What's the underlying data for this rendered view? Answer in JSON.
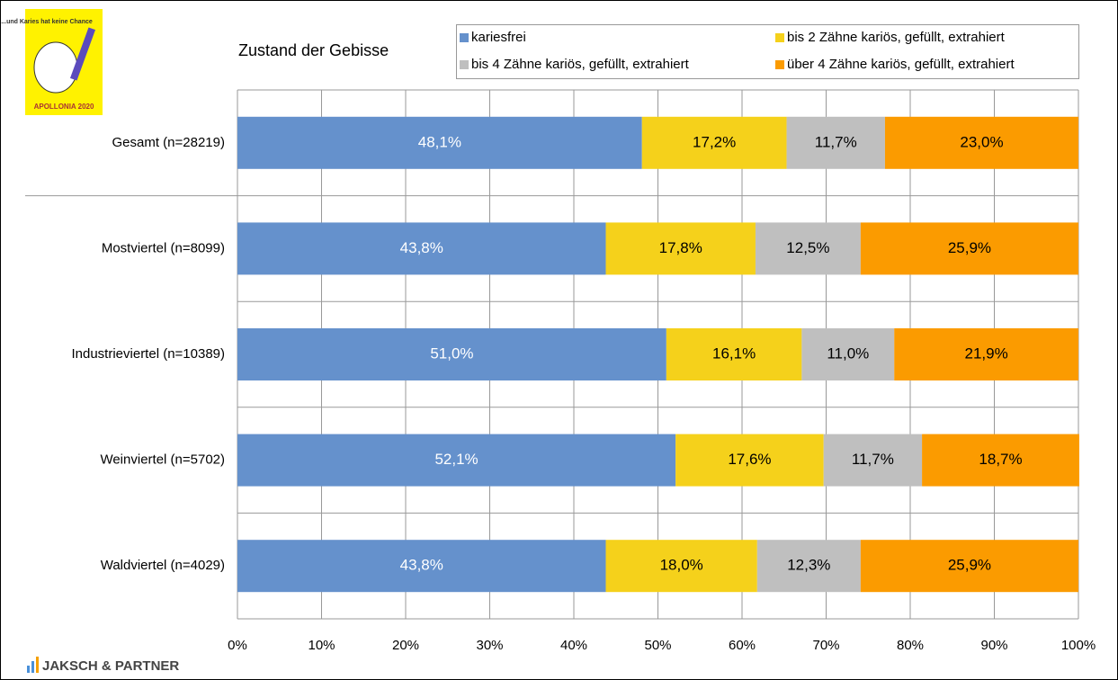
{
  "chart_data": {
    "type": "stacked_barh",
    "title": "Zustand der Gebisse",
    "logo": {
      "caption": "...und Karies hat keine Chance",
      "name": "APOLLONIA 2020"
    },
    "source": "JAKSCH & PARTNER",
    "categories": [
      "Gesamt (n=28219)",
      "Mostviertel (n=8099)",
      "Industrieviertel (n=10389)",
      "Weinviertel (n=5702)",
      "Waldviertel (n=4029)"
    ],
    "series": [
      {
        "name": "kariesfrei",
        "color": "#6591cc",
        "values": [
          48.1,
          43.8,
          51.0,
          52.1,
          43.8
        ],
        "value_labels": [
          "48,1%",
          "43,8%",
          "51,0%",
          "52,1%",
          "43,8%"
        ]
      },
      {
        "name": "bis 2 Zähne kariös, gefüllt, extrahiert",
        "color": "#f5d11b",
        "values": [
          17.2,
          17.8,
          16.1,
          17.6,
          18.0
        ],
        "value_labels": [
          "17,2%",
          "17,8%",
          "16,1%",
          "17,6%",
          "18,0%"
        ]
      },
      {
        "name": "bis 4 Zähne kariös, gefüllt, extrahiert",
        "color": "#bfbfbf",
        "values": [
          11.7,
          12.5,
          11.0,
          11.7,
          12.3
        ],
        "value_labels": [
          "11,7%",
          "12,5%",
          "11,0%",
          "11,7%",
          "12,3%"
        ]
      },
      {
        "name": "über 4 Zähne kariös, gefüllt, extrahiert",
        "color": "#fb9b00",
        "values": [
          23.0,
          25.9,
          21.9,
          18.7,
          25.9
        ],
        "value_labels": [
          "23,0%",
          "25,9%",
          "21,9%",
          "18,7%",
          "25,9%"
        ]
      }
    ],
    "xlim": [
      0,
      100
    ],
    "xticks": [
      {
        "value": 0,
        "label": "0%"
      },
      {
        "value": 10,
        "label": "10%"
      },
      {
        "value": 20,
        "label": "20%"
      },
      {
        "value": 30,
        "label": "30%"
      },
      {
        "value": 40,
        "label": "40%"
      },
      {
        "value": 50,
        "label": "50%"
      },
      {
        "value": 60,
        "label": "60%"
      },
      {
        "value": 70,
        "label": "70%"
      },
      {
        "value": 80,
        "label": "80%"
      },
      {
        "value": 90,
        "label": "90%"
      },
      {
        "value": 100,
        "label": "100%"
      }
    ],
    "grid": true,
    "legend": "top-right"
  }
}
